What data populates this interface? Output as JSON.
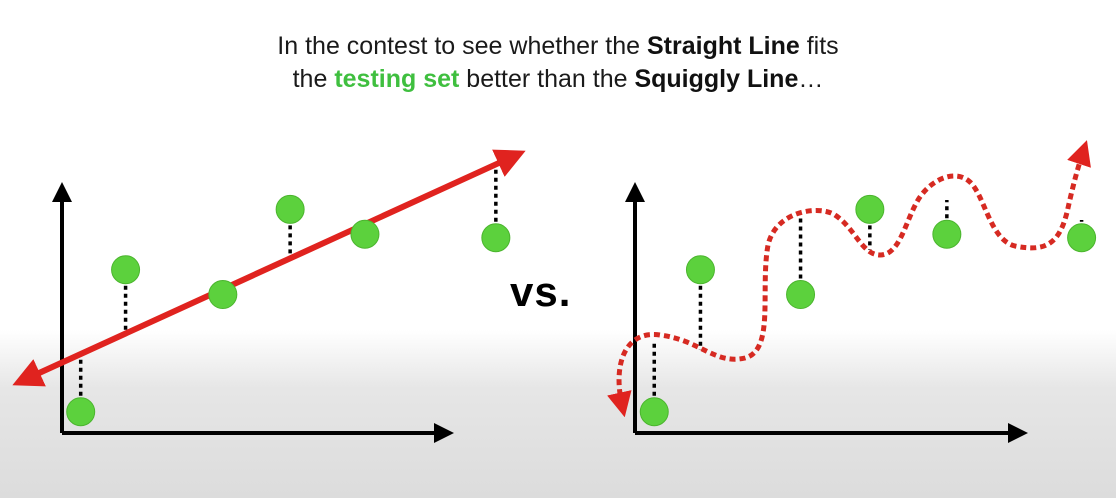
{
  "caption": {
    "line1": [
      "In the contest to see whether the ",
      "Straight Line",
      " fits"
    ],
    "line2": [
      "the ",
      "testing set",
      " better than the ",
      "Squiggly Line",
      "…"
    ]
  },
  "vs_label": "vs.",
  "colors": {
    "point": "#5cd13d",
    "point_stroke": "#4bb52e",
    "fit_line": "#e0231f",
    "axis": "#000000",
    "residual": "#000000",
    "highlight_green": "#3fbf3f"
  },
  "left_panel": {
    "fit": "straight-line",
    "points": [
      {
        "x": 0.5,
        "y": 0.6
      },
      {
        "x": 1.7,
        "y": 4.6
      },
      {
        "x": 4.3,
        "y": 3.9
      },
      {
        "x": 6.1,
        "y": 6.3
      },
      {
        "x": 8.1,
        "y": 5.6
      },
      {
        "x": 11.6,
        "y": 5.5
      }
    ]
  },
  "right_panel": {
    "fit": "squiggly-line",
    "points": [
      {
        "x": 0.5,
        "y": 0.6
      },
      {
        "x": 1.7,
        "y": 4.6
      },
      {
        "x": 4.3,
        "y": 3.9
      },
      {
        "x": 6.1,
        "y": 6.3
      },
      {
        "x": 8.1,
        "y": 5.6
      },
      {
        "x": 11.6,
        "y": 5.5
      }
    ]
  }
}
